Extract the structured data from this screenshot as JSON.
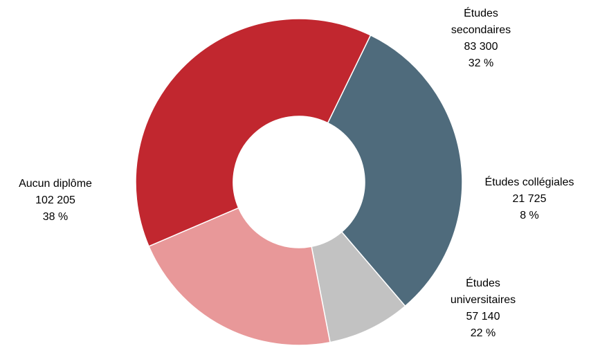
{
  "chart_data": {
    "type": "pie",
    "donut": true,
    "title": "",
    "start_angle_deg": 26,
    "direction": "clockwise",
    "categories": [
      "Études secondaires",
      "Études collégiales",
      "Études universitaires",
      "Aucun diplôme"
    ],
    "values": [
      83300,
      21725,
      57140,
      102205
    ],
    "value_labels": [
      "83 300",
      "21 725",
      "57 140",
      "102 205"
    ],
    "percent_labels": [
      "32 %",
      "8 %",
      "22 %",
      "38 %"
    ],
    "label_lines": [
      [
        "Études",
        "secondaires"
      ],
      [
        "Études collégiales"
      ],
      [
        "Études",
        "universitaires"
      ],
      [
        "Aucun diplôme"
      ]
    ],
    "colors": [
      "#4f6b7c",
      "#c2c2c2",
      "#e89899",
      "#c1272f"
    ],
    "legend": "none"
  }
}
